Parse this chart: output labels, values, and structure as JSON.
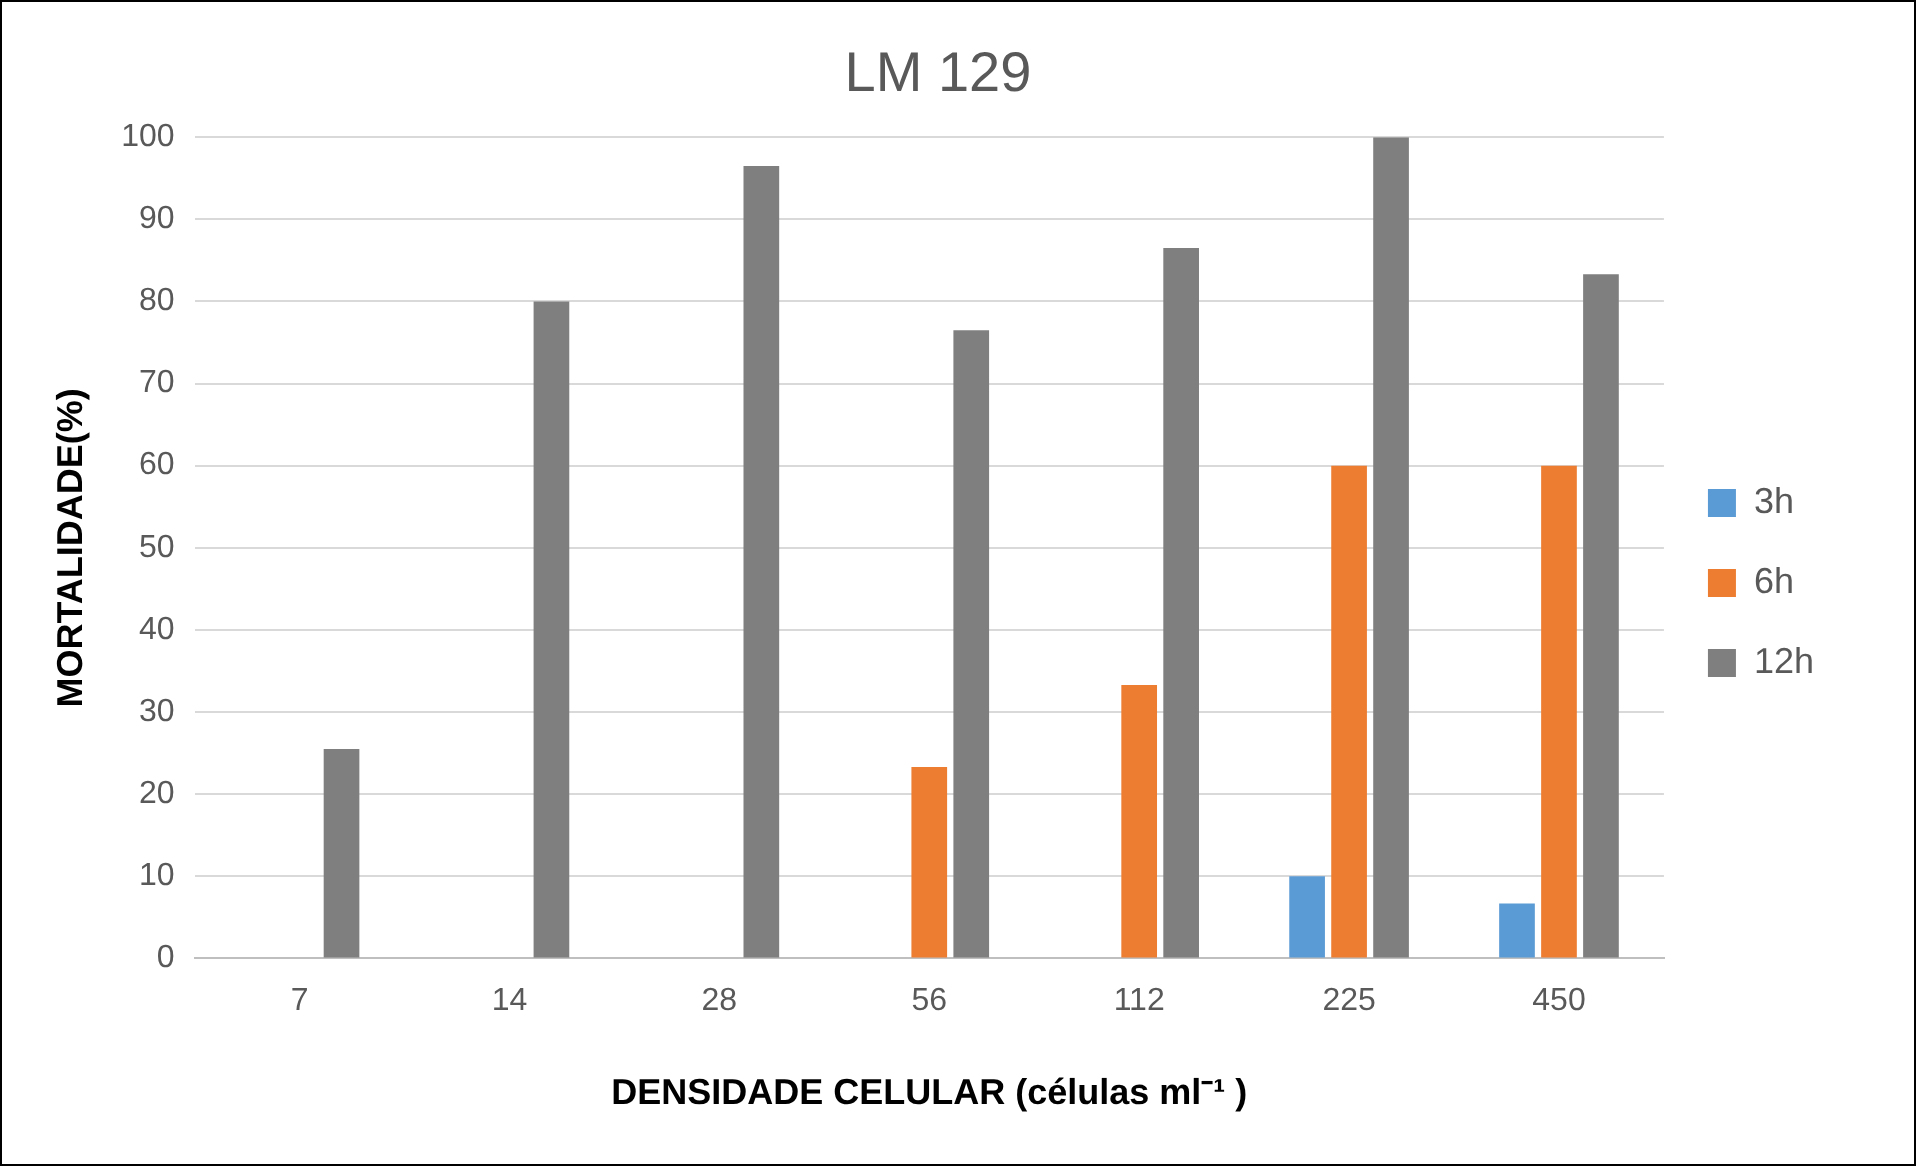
{
  "chart_data": {
    "type": "bar",
    "title": "LM 129",
    "xlabel": "DENSIDADE CELULAR (células ml⁻¹ )",
    "ylabel": "MORTALIDADE(%)",
    "categories": [
      "7",
      "14",
      "28",
      "56",
      "112",
      "225",
      "450"
    ],
    "series": [
      {
        "name": "3h",
        "color": "#5b9bd5",
        "values": [
          0,
          0,
          0,
          0,
          0,
          10,
          6.7
        ]
      },
      {
        "name": "6h",
        "color": "#ed7d31",
        "values": [
          0,
          0,
          0,
          23.3,
          33.3,
          60,
          60
        ]
      },
      {
        "name": "12h",
        "color": "#7f7f7f",
        "values": [
          25.5,
          80,
          96.5,
          76.5,
          86.5,
          100,
          83.3
        ]
      }
    ],
    "ylim": [
      0,
      100
    ],
    "yticks": [
      0,
      10,
      20,
      30,
      40,
      50,
      60,
      70,
      80,
      90,
      100
    ],
    "grid": "y",
    "legend": "right"
  }
}
